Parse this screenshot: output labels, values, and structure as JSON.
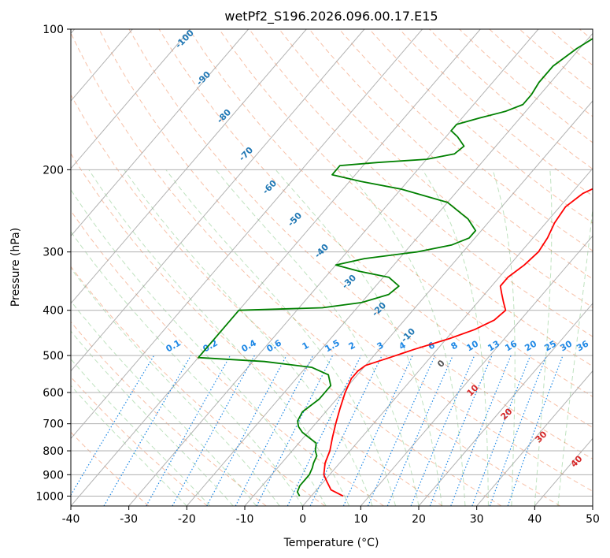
{
  "chart_data": {
    "type": "line",
    "subtype": "skew-t log-p diagram",
    "title": "wetPf2_S196.2026.096.00.17.E15",
    "xlabel": "Temperature (°C)",
    "ylabel": "Pressure (hPa)",
    "xlim": [
      -40,
      50
    ],
    "ylim": [
      1050,
      100
    ],
    "y_scale": "log",
    "grid": true,
    "x_ticks": [
      -40,
      -30,
      -20,
      -10,
      0,
      10,
      20,
      30,
      40,
      50
    ],
    "y_ticks": [
      100,
      200,
      300,
      400,
      500,
      600,
      700,
      800,
      900,
      1000
    ],
    "series": [
      {
        "name": "",
        "color": "#ff0000",
        "points": [
          {
            "p": 1000,
            "t": 5.5
          },
          {
            "p": 970,
            "t": 2.5
          },
          {
            "p": 930,
            "t": 0.5
          },
          {
            "p": 900,
            "t": -1.0
          },
          {
            "p": 850,
            "t": -2.5
          },
          {
            "p": 800,
            "t": -3.5
          },
          {
            "p": 750,
            "t": -5.0
          },
          {
            "p": 700,
            "t": -6.5
          },
          {
            "p": 650,
            "t": -8.0
          },
          {
            "p": 600,
            "t": -9.5
          },
          {
            "p": 560,
            "t": -10.5
          },
          {
            "p": 540,
            "t": -10.5
          },
          {
            "p": 525,
            "t": -10.0
          },
          {
            "p": 505,
            "t": -7.0
          },
          {
            "p": 485,
            "t": -4.0
          },
          {
            "p": 460,
            "t": 0.5
          },
          {
            "p": 440,
            "t": 3.5
          },
          {
            "p": 420,
            "t": 5.5
          },
          {
            "p": 400,
            "t": 6.0
          },
          {
            "p": 385,
            "t": 4.5
          },
          {
            "p": 370,
            "t": 3.0
          },
          {
            "p": 355,
            "t": 1.5
          },
          {
            "p": 340,
            "t": 1.5
          },
          {
            "p": 320,
            "t": 2.5
          },
          {
            "p": 300,
            "t": 3.0
          },
          {
            "p": 280,
            "t": 2.5
          },
          {
            "p": 260,
            "t": 1.5
          },
          {
            "p": 240,
            "t": 1.0
          },
          {
            "p": 225,
            "t": 2.0
          },
          {
            "p": 210,
            "t": 5.0
          },
          {
            "p": 200,
            "t": 7.5
          },
          {
            "p": 190,
            "t": 8.5
          },
          {
            "p": 180,
            "t": 8.5
          },
          {
            "p": 165,
            "t": 9.0
          },
          {
            "p": 150,
            "t": 9.5
          },
          {
            "p": 135,
            "t": 10.0
          },
          {
            "p": 120,
            "t": 12.0
          },
          {
            "p": 110,
            "t": 13.0
          },
          {
            "p": 100,
            "t": 14.0
          }
        ]
      },
      {
        "name": "",
        "color": "#008000",
        "points": [
          {
            "p": 1000,
            "t": -2.0
          },
          {
            "p": 980,
            "t": -3.0
          },
          {
            "p": 950,
            "t": -3.5
          },
          {
            "p": 920,
            "t": -3.5
          },
          {
            "p": 900,
            "t": -3.5
          },
          {
            "p": 870,
            "t": -4.0
          },
          {
            "p": 850,
            "t": -4.5
          },
          {
            "p": 820,
            "t": -5.0
          },
          {
            "p": 800,
            "t": -6.0
          },
          {
            "p": 770,
            "t": -7.0
          },
          {
            "p": 750,
            "t": -9.0
          },
          {
            "p": 730,
            "t": -11.0
          },
          {
            "p": 710,
            "t": -12.5
          },
          {
            "p": 690,
            "t": -13.5
          },
          {
            "p": 660,
            "t": -14.0
          },
          {
            "p": 620,
            "t": -13.0
          },
          {
            "p": 580,
            "t": -13.0
          },
          {
            "p": 550,
            "t": -15.0
          },
          {
            "p": 530,
            "t": -19.0
          },
          {
            "p": 515,
            "t": -28.0
          },
          {
            "p": 505,
            "t": -40.0
          },
          {
            "p": 400,
            "t": -40.0
          },
          {
            "p": 395,
            "t": -26.0
          },
          {
            "p": 385,
            "t": -20.0
          },
          {
            "p": 370,
            "t": -16.5
          },
          {
            "p": 355,
            "t": -16.0
          },
          {
            "p": 340,
            "t": -19.0
          },
          {
            "p": 330,
            "t": -25.0
          },
          {
            "p": 320,
            "t": -30.0
          },
          {
            "p": 310,
            "t": -26.0
          },
          {
            "p": 300,
            "t": -18.0
          },
          {
            "p": 290,
            "t": -13.0
          },
          {
            "p": 280,
            "t": -11.0
          },
          {
            "p": 270,
            "t": -11.0
          },
          {
            "p": 255,
            "t": -14.0
          },
          {
            "p": 235,
            "t": -20.0
          },
          {
            "p": 220,
            "t": -30.0
          },
          {
            "p": 212,
            "t": -38.0
          },
          {
            "p": 205,
            "t": -44.0
          },
          {
            "p": 196,
            "t": -44.0
          },
          {
            "p": 193,
            "t": -38.0
          },
          {
            "p": 190,
            "t": -30.0
          },
          {
            "p": 185,
            "t": -26.0
          },
          {
            "p": 178,
            "t": -25.5
          },
          {
            "p": 170,
            "t": -28.0
          },
          {
            "p": 165,
            "t": -30.0
          },
          {
            "p": 160,
            "t": -30.0
          },
          {
            "p": 155,
            "t": -27.0
          },
          {
            "p": 150,
            "t": -23.5
          },
          {
            "p": 145,
            "t": -21.5
          },
          {
            "p": 138,
            "t": -21.5
          },
          {
            "p": 130,
            "t": -22.0
          },
          {
            "p": 120,
            "t": -22.0
          },
          {
            "p": 110,
            "t": -20.5
          },
          {
            "p": 100,
            "t": -18.0
          }
        ]
      }
    ],
    "mixing_ratio_labels": [
      "0.1",
      "0.2",
      "0.4",
      "0.6",
      "1",
      "1.5",
      "2",
      "3",
      "4",
      "6",
      "8",
      "10",
      "13",
      "16",
      "20",
      "25",
      "30",
      "36"
    ],
    "mixing_ratio_values": [
      0.1,
      0.2,
      0.4,
      0.6,
      1,
      1.5,
      2,
      3,
      4,
      6,
      8,
      10,
      13,
      16,
      20,
      25,
      30,
      36
    ],
    "dry_adiabat_labels": [
      "-100",
      "-90",
      "-80",
      "-70",
      "-60",
      "-50",
      "-40",
      "-30",
      "-20",
      "-10"
    ],
    "moist_adiabat_labels": [
      "0",
      "10",
      "20",
      "30",
      "40"
    ],
    "colors": {
      "temperature": "#ff0000",
      "dewpoint": "#008000",
      "dry_adiabat": "#f4a582",
      "moist_adiabat": "#1f77b4",
      "mixing_ratio": "#1e88e5",
      "isotherm": "#999999",
      "mixing_label": "#1e88e5",
      "moist_label_warm": "#d62728",
      "moist_label_zero": "#555555"
    }
  }
}
